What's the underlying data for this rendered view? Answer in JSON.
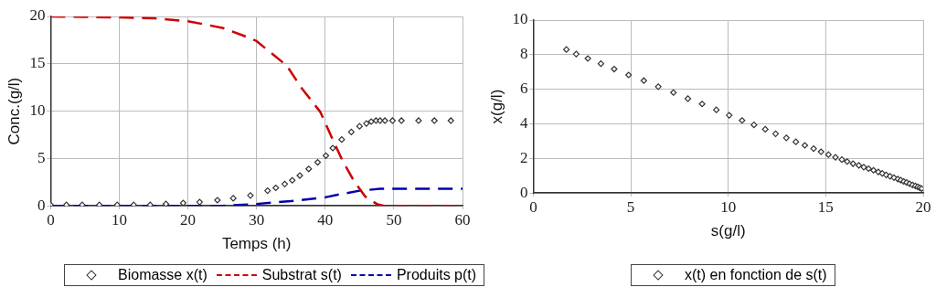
{
  "chart_data": [
    {
      "type": "line",
      "xlabel": "Temps (h)",
      "ylabel": "Conc.(g/l)",
      "xlim": [
        0,
        60
      ],
      "xticks": [
        0,
        10,
        20,
        30,
        40,
        50,
        60
      ],
      "ylim": [
        0,
        20
      ],
      "yticks": [
        0,
        5,
        10,
        15,
        20
      ],
      "grid": true,
      "legend": "bottom",
      "series": [
        {
          "name": "Biomasse x(t)",
          "type": "scatter",
          "marker": "diamond",
          "color": "#333333",
          "x": [
            0,
            2.3,
            4.6,
            7.1,
            9.7,
            12.1,
            14.5,
            16.8,
            19.3,
            21.7,
            24.3,
            26.6,
            29.1,
            31.6,
            32.8,
            34.1,
            35.2,
            36.3,
            37.6,
            38.9,
            40.1,
            41.1,
            42.4,
            43.8,
            45.0,
            46.0,
            46.7,
            47.4,
            48.0,
            48.7,
            49.8,
            51.1,
            53.6,
            55.9,
            58.3
          ],
          "values": [
            0.1,
            0.1,
            0.1,
            0.1,
            0.1,
            0.1,
            0.1,
            0.2,
            0.3,
            0.4,
            0.6,
            0.8,
            1.1,
            1.6,
            1.9,
            2.3,
            2.7,
            3.2,
            3.9,
            4.6,
            5.3,
            6.1,
            7.0,
            7.8,
            8.4,
            8.7,
            8.9,
            9.0,
            9.0,
            9.0,
            9.0,
            9.0,
            9.0,
            9.0,
            9.0
          ]
        },
        {
          "name": "Substrat s(t)",
          "type": "line",
          "marker": "none",
          "line_style": "dashed",
          "color": "#cc0000",
          "x": [
            0,
            10,
            15,
            20,
            25,
            28,
            30,
            34.4,
            36.6,
            39.3,
            40.9,
            42.5,
            44.2,
            45.8,
            47.5,
            48.6,
            60
          ],
          "values": [
            20,
            19.9,
            19.8,
            19.5,
            18.8,
            18.0,
            17.4,
            14.8,
            12.4,
            9.9,
            7.3,
            4.8,
            2.6,
            1.0,
            0.2,
            0,
            0
          ]
        },
        {
          "name": "Produits p(t)",
          "type": "line",
          "marker": "none",
          "line_style": "dashed",
          "color": "#0000aa",
          "x": [
            0,
            25,
            30,
            35,
            40,
            42,
            45,
            48,
            50,
            60
          ],
          "values": [
            0,
            0,
            0.2,
            0.5,
            0.9,
            1.2,
            1.6,
            1.8,
            1.8,
            1.8
          ]
        }
      ]
    },
    {
      "type": "scatter",
      "xlabel": "s(g/l)",
      "ylabel": "x(g/l)",
      "xlim": [
        0,
        20
      ],
      "xticks": [
        0,
        5,
        10,
        15,
        20
      ],
      "ylim": [
        0,
        10
      ],
      "yticks": [
        0,
        2,
        4,
        6,
        8,
        10
      ],
      "grid": true,
      "legend": "bottom",
      "marker": "diamond",
      "series": [
        {
          "name": "x(t) en fonction de s(t)",
          "color": "#333333",
          "x": [
            1.7,
            2.2,
            2.8,
            3.47,
            4.15,
            4.89,
            5.67,
            6.41,
            7.19,
            7.93,
            8.66,
            9.39,
            10.05,
            10.71,
            11.32,
            11.9,
            12.43,
            12.98,
            13.47,
            13.93,
            14.38,
            14.76,
            15.14,
            15.5,
            15.83,
            16.1,
            16.4,
            16.7,
            16.95,
            17.2,
            17.45,
            17.7,
            17.9,
            18.1,
            18.3,
            18.5,
            18.7,
            18.85,
            19.0,
            19.15,
            19.3,
            19.45,
            19.6,
            19.72,
            19.82,
            19.92
          ],
          "values": [
            8.3,
            8.04,
            7.78,
            7.48,
            7.17,
            6.83,
            6.5,
            6.15,
            5.81,
            5.46,
            5.15,
            4.81,
            4.5,
            4.2,
            3.94,
            3.69,
            3.43,
            3.19,
            2.96,
            2.76,
            2.57,
            2.39,
            2.22,
            2.07,
            1.93,
            1.82,
            1.7,
            1.6,
            1.5,
            1.41,
            1.32,
            1.22,
            1.14,
            1.05,
            0.97,
            0.89,
            0.81,
            0.74,
            0.67,
            0.61,
            0.54,
            0.47,
            0.41,
            0.36,
            0.31,
            0.26
          ]
        }
      ]
    }
  ]
}
